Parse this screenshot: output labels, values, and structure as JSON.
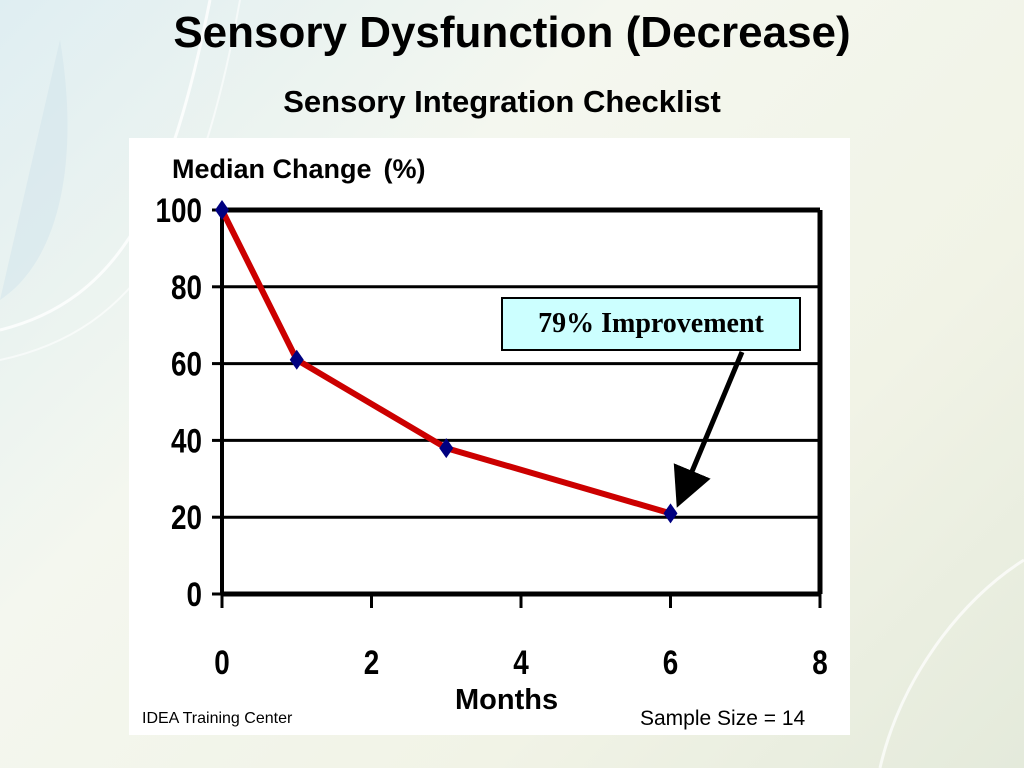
{
  "slide": {
    "title": "Sensory Dysfunction (Decrease)",
    "subtitle": "Sensory Integration Checklist",
    "footer_left": "IDEA Training Center",
    "footer_right": "Sample Size = 14"
  },
  "chart_data": {
    "type": "line",
    "ylabel_main": "Median Change",
    "ylabel_unit": "(%)",
    "xlabel": "Months",
    "xlim": [
      0,
      8
    ],
    "ylim": [
      0,
      100
    ],
    "xticks": [
      "0",
      "2",
      "4",
      "6",
      "8"
    ],
    "yticks": [
      "0",
      "20",
      "40",
      "60",
      "80",
      "100"
    ],
    "grid": true,
    "series": [
      {
        "x": [
          0,
          1,
          3,
          6
        ],
        "y": [
          100,
          61,
          38,
          21
        ],
        "color": "#cc0000",
        "marker_color": "#000080"
      }
    ],
    "annotation": {
      "text": "79% Improvement",
      "target_x": 6,
      "target_y": 21
    }
  }
}
